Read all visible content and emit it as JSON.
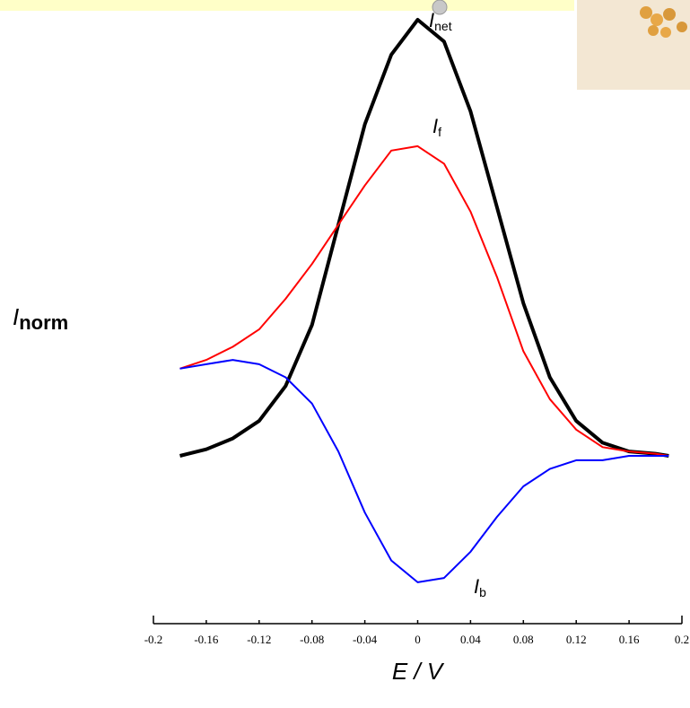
{
  "chart_data": {
    "type": "line",
    "x_label": "E / V",
    "y_label": "I",
    "y_label_sub": "norm",
    "x": [
      -0.18,
      -0.16,
      -0.14,
      -0.12,
      -0.1,
      -0.08,
      -0.06,
      -0.04,
      -0.02,
      0,
      0.02,
      0.04,
      0.06,
      0.08,
      0.1,
      0.12,
      0.14,
      0.16,
      0.18,
      0.19
    ],
    "series": [
      {
        "name": "I",
        "subscript": "net",
        "color": "#000000",
        "width": 4,
        "values": [
          0,
          0.015,
          0.04,
          0.08,
          0.16,
          0.3,
          0.53,
          0.76,
          0.92,
          1.0,
          0.95,
          0.79,
          0.57,
          0.35,
          0.18,
          0.08,
          0.03,
          0.01,
          0.005,
          0
        ]
      },
      {
        "name": "I",
        "subscript": "f",
        "color": "#ff0000",
        "width": 2,
        "values": [
          0.2,
          0.22,
          0.25,
          0.29,
          0.36,
          0.44,
          0.53,
          0.62,
          0.7,
          0.71,
          0.67,
          0.56,
          0.41,
          0.24,
          0.13,
          0.06,
          0.02,
          0.01,
          0.005,
          0
        ]
      },
      {
        "name": "I",
        "subscript": "b",
        "color": "#0000ff",
        "width": 2,
        "values": [
          0.2,
          0.21,
          0.22,
          0.21,
          0.18,
          0.12,
          0.01,
          -0.13,
          -0.24,
          -0.29,
          -0.28,
          -0.22,
          -0.14,
          -0.07,
          -0.03,
          -0.01,
          -0.01,
          0,
          0,
          0
        ]
      }
    ],
    "xlim": [
      -0.2,
      0.2
    ],
    "xticks": [
      -0.2,
      -0.16,
      -0.12,
      -0.08,
      -0.04,
      0,
      0.04,
      0.08,
      0.12,
      0.16,
      0.2
    ],
    "ylim": [
      -0.4,
      1.0
    ]
  }
}
